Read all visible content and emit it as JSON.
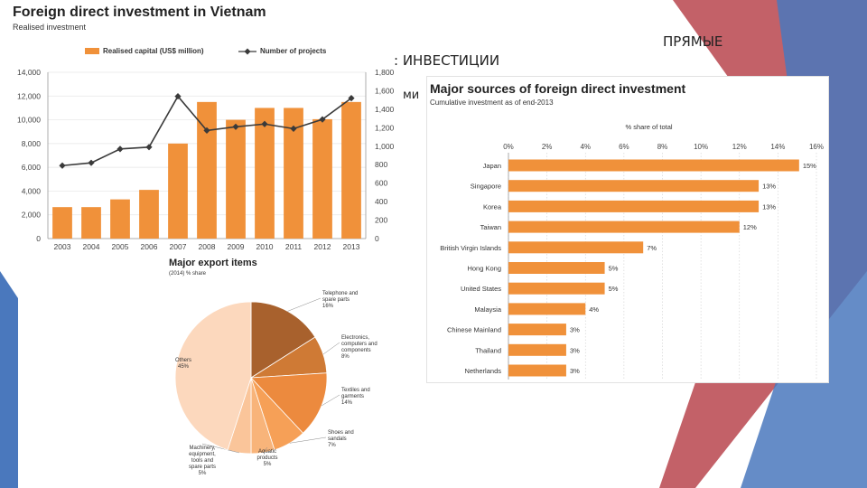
{
  "slide": {
    "title_fragment_left": ": ИНВЕСТИЦИИ",
    "title_fragment_right": "ПРЯМЫЕ",
    "cut_fragment": "ми"
  },
  "colors": {
    "orange": "#f0913a",
    "line": "#3a3a3a",
    "slide_red": "#b9454d",
    "slide_blue": "#4a78bd"
  },
  "chart_data": [
    {
      "type": "bar",
      "title": "Foreign direct investment in Vietnam",
      "subtitle": "Realised investment",
      "categories": [
        "2003",
        "2004",
        "2005",
        "2006",
        "2007",
        "2008",
        "2009",
        "2010",
        "2011",
        "2012",
        "2013"
      ],
      "series": [
        {
          "name": "Realised capital (US$ million)",
          "type": "bar",
          "axis": "left",
          "values": [
            2650,
            2650,
            3300,
            4100,
            8000,
            11500,
            10000,
            11000,
            11000,
            10050,
            11500
          ]
        },
        {
          "name": "Number of projects",
          "type": "line",
          "axis": "right",
          "values": [
            790,
            820,
            970,
            990,
            1540,
            1170,
            1210,
            1240,
            1190,
            1290,
            1520
          ]
        }
      ],
      "yticks_left": [
        "0",
        "2,000",
        "4,000",
        "6,000",
        "8,000",
        "10,000",
        "12,000",
        "14,000"
      ],
      "yticks_right": [
        "0",
        "200",
        "400",
        "600",
        "800",
        "1,000",
        "1,200",
        "1,400",
        "1,600",
        "1,800"
      ],
      "ylim_left": [
        0,
        14000
      ],
      "ylim_right": [
        0,
        1800
      ],
      "legend_position": "top"
    },
    {
      "type": "pie",
      "title": "Major export items",
      "subtitle": "(2014) % share",
      "slices": [
        {
          "label": "Telephone and spare parts",
          "value_text": "16%",
          "value": 16,
          "color": "#a8612d"
        },
        {
          "label": "Electronics, computers and components",
          "value_text": "8%",
          "value": 8,
          "color": "#cf7a35"
        },
        {
          "label": "Textiles and garments",
          "value_text": "14%",
          "value": 14,
          "color": "#ec8a3e"
        },
        {
          "label": "Shoes and sandals",
          "value_text": "7%",
          "value": 7,
          "color": "#f6a057"
        },
        {
          "label": "Aquatic products",
          "value_text": "5%",
          "value": 5,
          "color": "#f8b47a"
        },
        {
          "label": "Machinery, equipment, tools and spare parts",
          "value_text": "5%",
          "value": 5,
          "color": "#fac59a"
        },
        {
          "label": "Others",
          "value_text": "45%",
          "value": 45,
          "color": "#fcd8bd"
        }
      ]
    },
    {
      "type": "bar",
      "orientation": "horizontal",
      "title": "Major sources of foreign direct investment",
      "subtitle": "Cumulative investment as of end-2013",
      "axis_title": "% share of total",
      "xticks": [
        "0%",
        "2%",
        "4%",
        "6%",
        "8%",
        "10%",
        "12%",
        "14%",
        "16%"
      ],
      "xlim": [
        0,
        16
      ],
      "categories": [
        "Japan",
        "Singapore",
        "Korea",
        "Taiwan",
        "British Virgin Islands",
        "Hong Kong",
        "United States",
        "Malaysia",
        "Chinese Mainland",
        "Thailand",
        "Netherlands"
      ],
      "values": [
        15.1,
        13.0,
        13.0,
        12.0,
        7.0,
        5.0,
        5.0,
        4.0,
        3.0,
        3.0,
        3.0
      ],
      "value_labels": [
        "15%",
        "13%",
        "13%",
        "12%",
        "7%",
        "5%",
        "5%",
        "4%",
        "3%",
        "3%",
        "3%"
      ]
    }
  ]
}
